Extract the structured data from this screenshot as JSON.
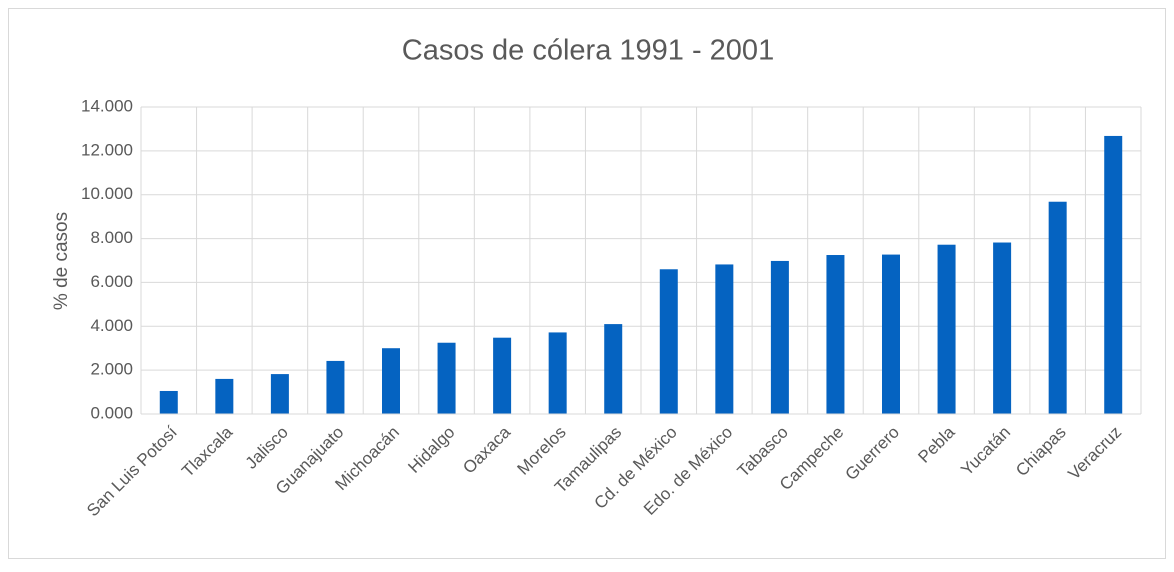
{
  "chart_data": {
    "type": "bar",
    "title": "Casos de cólera 1991 - 2001",
    "y_label": "% de casos",
    "categories": [
      "San Luis Potosí",
      "Tlaxcala",
      "Jalisco",
      "Guanajuato",
      "Michoacán",
      "Hidalgo",
      "Oaxaca",
      "Morelos",
      "Tamaulipas",
      "Cd. de México",
      "Edo. de México",
      "Tabasco",
      "Campeche",
      "Guerrero",
      "Pebla",
      "Yucatán",
      "Chiapas",
      "Veracruz"
    ],
    "values": [
      1.05,
      1.6,
      1.82,
      2.42,
      3.0,
      3.25,
      3.48,
      3.72,
      4.1,
      6.6,
      6.82,
      6.98,
      7.25,
      7.27,
      7.72,
      7.82,
      9.68,
      12.68
    ],
    "color": "#0563c1",
    "ylim": [
      0,
      14
    ],
    "yticks": [
      {
        "value": 0,
        "label": "0.000"
      },
      {
        "value": 2,
        "label": "2.000"
      },
      {
        "value": 4,
        "label": "4.000"
      },
      {
        "value": 6,
        "label": "6.000"
      },
      {
        "value": 8,
        "label": "8.000"
      },
      {
        "value": 10,
        "label": "10.000"
      },
      {
        "value": 12,
        "label": "12.000"
      },
      {
        "value": 14,
        "label": "14.000"
      }
    ],
    "grid": true
  }
}
